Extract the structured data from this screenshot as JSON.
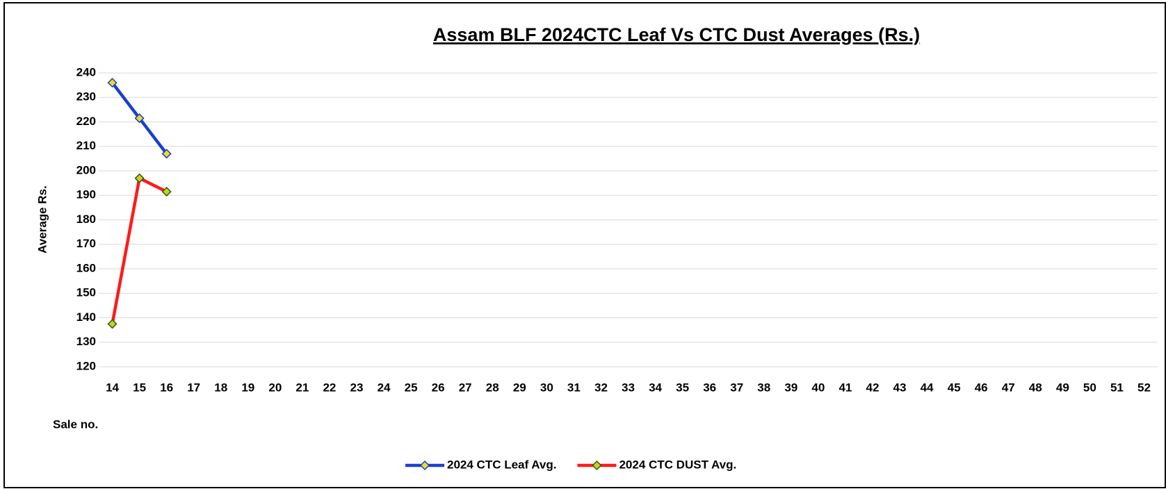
{
  "chart_data": {
    "type": "line",
    "title": "Assam BLF 2024CTC Leaf Vs CTC Dust Averages (Rs.)",
    "y_label": "Average Rs.",
    "x_label": "Sale no.",
    "categories": [
      14,
      15,
      16,
      17,
      18,
      19,
      20,
      21,
      22,
      23,
      24,
      25,
      26,
      27,
      28,
      29,
      30,
      31,
      32,
      33,
      34,
      35,
      36,
      37,
      38,
      39,
      40,
      41,
      42,
      43,
      44,
      45,
      46,
      47,
      48,
      49,
      50,
      51,
      52
    ],
    "series": [
      {
        "name": "2024 CTC Leaf Avg.",
        "color": "#1a3fcf",
        "marker_color": "#e8dc2a",
        "values": [
          236,
          221.5,
          207,
          null,
          null,
          null,
          null,
          null,
          null,
          null,
          null,
          null,
          null,
          null,
          null,
          null,
          null,
          null,
          null,
          null,
          null,
          null,
          null,
          null,
          null,
          null,
          null,
          null,
          null,
          null,
          null,
          null,
          null,
          null,
          null,
          null,
          null,
          null,
          null
        ]
      },
      {
        "name": "2024 CTC DUST Avg.",
        "color": "#ff1a1a",
        "marker_color": "#c8d21e",
        "values": [
          137.5,
          197,
          191.5,
          null,
          null,
          null,
          null,
          null,
          null,
          null,
          null,
          null,
          null,
          null,
          null,
          null,
          null,
          null,
          null,
          null,
          null,
          null,
          null,
          null,
          null,
          null,
          null,
          null,
          null,
          null,
          null,
          null,
          null,
          null,
          null,
          null,
          null,
          null,
          null
        ]
      }
    ],
    "ylim": [
      120,
      240
    ],
    "yticks": [
      120,
      130,
      140,
      150,
      160,
      170,
      180,
      190,
      200,
      210,
      220,
      230,
      240
    ],
    "grid": true,
    "legend": "bottom"
  }
}
